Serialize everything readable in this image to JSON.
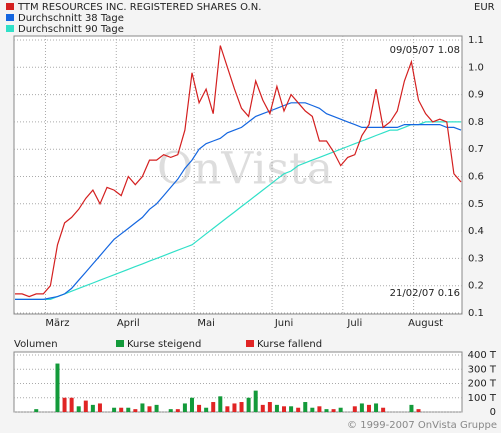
{
  "chart_data": [
    {
      "type": "line",
      "currency": "EUR",
      "watermark": "OnVista",
      "annotations": [
        "09/05/07 1.08",
        "21/02/07 0.16"
      ],
      "categories": [
        null,
        null,
        null,
        null,
        null,
        null,
        "März",
        null,
        null,
        null,
        null,
        null,
        null,
        null,
        null,
        null,
        "April",
        null,
        null,
        null,
        null,
        null,
        null,
        null,
        null,
        null,
        null,
        "Mai",
        null,
        null,
        null,
        null,
        null,
        null,
        null,
        null,
        null,
        null,
        "Juni",
        null,
        null,
        null,
        null,
        null,
        null,
        null,
        null,
        null,
        "Juli",
        null,
        null,
        null,
        null,
        null,
        null,
        null,
        null,
        null,
        "August",
        null,
        null,
        null,
        null,
        null
      ],
      "series": [
        {
          "name": "TTM RESOURCES INC. REGISTERED SHARES O.N.",
          "color": "#d42020",
          "values": [
            0.17,
            0.17,
            0.16,
            0.17,
            0.17,
            0.2,
            0.35,
            0.43,
            0.45,
            0.48,
            0.52,
            0.55,
            0.5,
            0.56,
            0.55,
            0.53,
            0.6,
            0.57,
            0.6,
            0.66,
            0.66,
            0.68,
            0.67,
            0.68,
            0.77,
            0.98,
            0.87,
            0.92,
            0.83,
            1.08,
            1.0,
            0.92,
            0.85,
            0.82,
            0.95,
            0.88,
            0.83,
            0.93,
            0.84,
            0.9,
            0.87,
            0.84,
            0.82,
            0.73,
            0.73,
            0.69,
            0.64,
            0.67,
            0.68,
            0.75,
            0.79,
            0.92,
            0.78,
            0.8,
            0.84,
            0.95,
            1.02,
            0.88,
            0.83,
            0.8,
            0.81,
            0.8,
            0.61,
            0.58
          ]
        },
        {
          "name": "Durchschnitt 38 Tage",
          "color": "#1466e0",
          "values": [
            0.15,
            0.15,
            0.15,
            0.15,
            0.15,
            0.155,
            0.16,
            0.17,
            0.19,
            0.22,
            0.25,
            0.28,
            0.31,
            0.34,
            0.37,
            0.39,
            0.41,
            0.43,
            0.45,
            0.48,
            0.5,
            0.53,
            0.56,
            0.59,
            0.63,
            0.66,
            0.7,
            0.72,
            0.73,
            0.74,
            0.76,
            0.77,
            0.78,
            0.8,
            0.82,
            0.83,
            0.84,
            0.85,
            0.86,
            0.87,
            0.87,
            0.87,
            0.86,
            0.85,
            0.83,
            0.82,
            0.81,
            0.8,
            0.79,
            0.78,
            0.78,
            0.78,
            0.78,
            0.78,
            0.78,
            0.79,
            0.79,
            0.79,
            0.79,
            0.79,
            0.79,
            0.78,
            0.78,
            0.77
          ]
        },
        {
          "name": "Durchschnitt 90 Tage",
          "color": "#30e0c8",
          "values": [
            0.15,
            0.15,
            0.15,
            0.15,
            0.15,
            0.15,
            0.16,
            0.17,
            0.18,
            0.19,
            0.2,
            0.21,
            0.22,
            0.23,
            0.24,
            0.25,
            0.26,
            0.27,
            0.28,
            0.29,
            0.3,
            0.31,
            0.32,
            0.33,
            0.34,
            0.35,
            0.37,
            0.39,
            0.41,
            0.43,
            0.45,
            0.47,
            0.49,
            0.51,
            0.53,
            0.55,
            0.57,
            0.59,
            0.61,
            0.62,
            0.64,
            0.65,
            0.66,
            0.67,
            0.68,
            0.69,
            0.7,
            0.71,
            0.72,
            0.73,
            0.74,
            0.75,
            0.76,
            0.77,
            0.77,
            0.78,
            0.79,
            0.79,
            0.8,
            0.8,
            0.8,
            0.8,
            0.8,
            0.8
          ]
        }
      ],
      "ylim": [
        0.1,
        1.1
      ],
      "yticks": [
        0.1,
        0.2,
        0.3,
        0.4,
        0.5,
        0.6,
        0.7,
        0.8,
        0.9,
        {
          "value": 1,
          "label": "1.0"
        },
        1.1
      ],
      "grid": true
    },
    {
      "type": "bar",
      "title": "Volumen",
      "series": [
        {
          "name": "Kurse steigend",
          "color": "#139a3a",
          "values": [
            null,
            null,
            null,
            20,
            null,
            null,
            340,
            null,
            null,
            40,
            null,
            50,
            null,
            null,
            30,
            null,
            30,
            null,
            60,
            null,
            50,
            null,
            20,
            null,
            60,
            100,
            null,
            30,
            null,
            110,
            null,
            null,
            null,
            100,
            150,
            null,
            null,
            50,
            null,
            40,
            null,
            70,
            30,
            null,
            20,
            null,
            30,
            null,
            null,
            60,
            null,
            60,
            null,
            null,
            null,
            null,
            50,
            null,
            null,
            null,
            null,
            null,
            null,
            null
          ]
        },
        {
          "name": "Kurse fallend",
          "color": "#e02424",
          "values": [
            null,
            null,
            null,
            null,
            null,
            null,
            null,
            100,
            100,
            null,
            80,
            null,
            60,
            null,
            null,
            30,
            null,
            20,
            null,
            40,
            null,
            null,
            null,
            20,
            null,
            null,
            50,
            null,
            70,
            null,
            40,
            60,
            70,
            null,
            null,
            50,
            70,
            null,
            40,
            null,
            30,
            null,
            null,
            40,
            null,
            20,
            null,
            null,
            40,
            null,
            50,
            null,
            30,
            null,
            null,
            null,
            null,
            20,
            null,
            null,
            null,
            null,
            null,
            null
          ]
        }
      ],
      "ylim": [
        0,
        400
      ],
      "yticks": [
        0,
        {
          "value": 100,
          "label": "100 T"
        },
        {
          "value": 200,
          "label": "200 T"
        },
        {
          "value": 300,
          "label": "300 T"
        },
        {
          "value": 400,
          "label": "400 T"
        }
      ],
      "grid": true,
      "copyright": "© 1999-2007 OnVista Gruppe"
    }
  ]
}
